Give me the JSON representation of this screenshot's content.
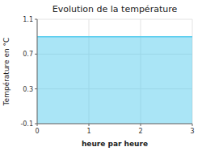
{
  "chart_data": {
    "type": "area",
    "title": "Evolution de la température",
    "xlabel": "heure par heure",
    "ylabel": "Température en °C",
    "x": [
      0,
      3
    ],
    "values": [
      0.9,
      0.9
    ],
    "color": "#55ccee",
    "xlim": [
      0,
      3
    ],
    "ylim": [
      -0.1,
      1.1
    ],
    "xticks": [
      0,
      1,
      2,
      3
    ],
    "yticks": [
      -0.1,
      0.3,
      0.7,
      1.1
    ],
    "grid": true
  }
}
